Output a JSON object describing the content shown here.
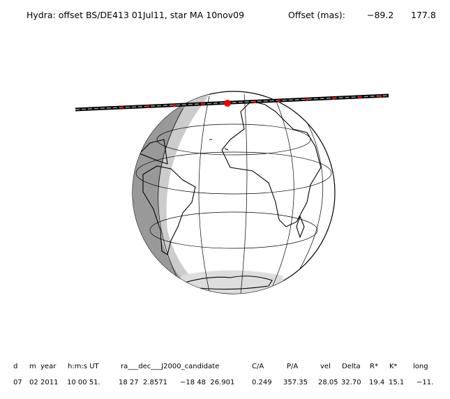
{
  "header": {
    "title": "Hydra: offset BS/DE413 01Jul11, star MA 10nov09",
    "offset_label": "Offset (mas):",
    "offsets": [
      "−89.2",
      "177.8"
    ]
  },
  "table": {
    "columns": [
      "d",
      "m",
      "year",
      "h:m:s UT",
      "ra___dec___J2000_candidate",
      "C/A",
      "P/A",
      "vel",
      "Delta",
      "R*",
      "K*",
      "long"
    ],
    "values": [
      "07",
      "02",
      "2011",
      "10 00 51.",
      "18 27  2.8571",
      "−18 48  26.901",
      "0.249",
      "357.35",
      "28.05",
      "32.70",
      "19.4",
      "15.1",
      "−11."
    ]
  }
}
